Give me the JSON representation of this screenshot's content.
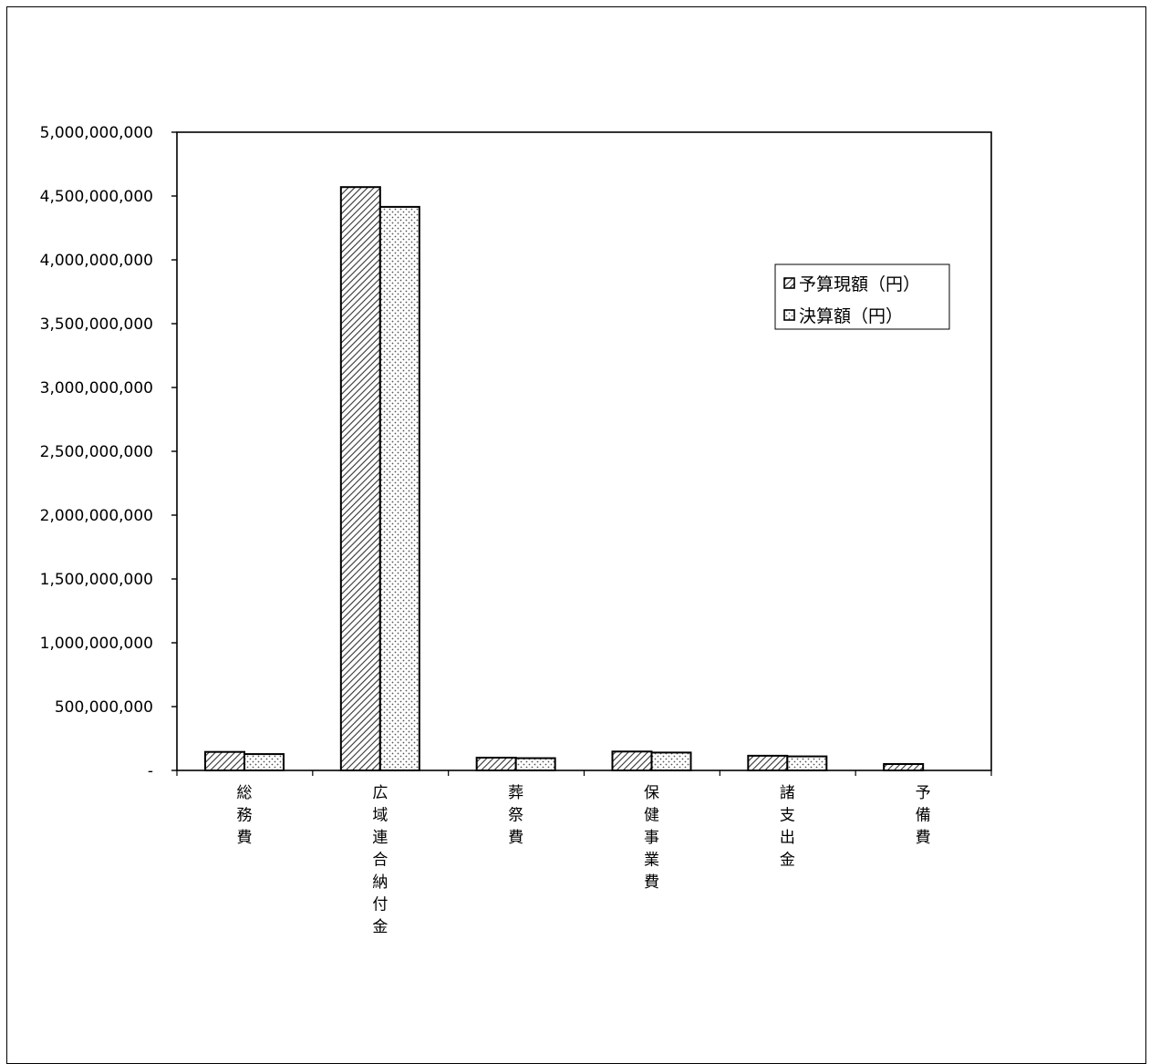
{
  "chart_data": {
    "type": "bar",
    "title": "",
    "xlabel": "",
    "ylabel": "",
    "categories": [
      "総務費",
      "広域連合納付金",
      "葬祭費",
      "保健事業費",
      "諸支出金",
      "予備費"
    ],
    "series": [
      {
        "name": "予算現額（円）",
        "pattern": "hatch",
        "values": [
          145000000,
          4570000000,
          100000000,
          148000000,
          115000000,
          50000000
        ]
      },
      {
        "name": "決算額（円）",
        "pattern": "dots",
        "values": [
          128000000,
          4415000000,
          96000000,
          140000000,
          110000000,
          0
        ]
      }
    ],
    "ylim": [
      0,
      5000000000
    ],
    "yticks": [
      {
        "value": 0,
        "label": "-"
      },
      {
        "value": 500000000,
        "label": "500,000,000"
      },
      {
        "value": 1000000000,
        "label": "1,000,000,000"
      },
      {
        "value": 1500000000,
        "label": "1,500,000,000"
      },
      {
        "value": 2000000000,
        "label": "2,000,000,000"
      },
      {
        "value": 2500000000,
        "label": "2,500,000,000"
      },
      {
        "value": 3000000000,
        "label": "3,000,000,000"
      },
      {
        "value": 3500000000,
        "label": "3,500,000,000"
      },
      {
        "value": 4000000000,
        "label": "4,000,000,000"
      },
      {
        "value": 4500000000,
        "label": "4,500,000,000"
      },
      {
        "value": 5000000000,
        "label": "5,000,000,000"
      }
    ],
    "grid": false,
    "legend": "right-upper",
    "colors": {
      "bar_stroke": "#000000",
      "hatch": "#333333",
      "dots": "#555555",
      "fill": "#ffffff"
    }
  }
}
